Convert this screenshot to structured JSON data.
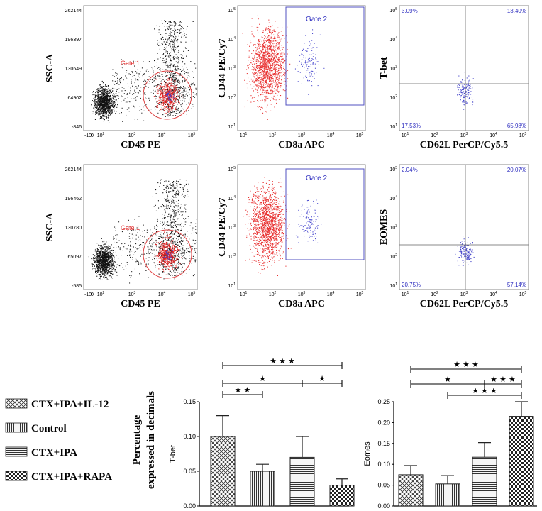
{
  "panels": [
    {
      "ylabel": "SSC-A",
      "xlabel": "CD45 PE",
      "yticks": [
        "262144",
        "196397",
        "130649",
        "64902",
        "-846"
      ],
      "xticks": [
        "-10",
        "0",
        "10",
        "10",
        "10",
        "10"
      ],
      "exps": [
        "",
        "",
        "2",
        "3",
        "4",
        "5"
      ],
      "gate": "Gate 1"
    },
    {
      "ylabel": "CD44 PE/Cy7",
      "xlabel": "CD8a APC",
      "yticks": [
        "10",
        "10",
        "10",
        "10",
        "10"
      ],
      "yexps": [
        "5",
        "4",
        "3",
        "2",
        "1"
      ],
      "xticks": [
        "10",
        "10",
        "10",
        "10",
        "10"
      ],
      "exps": [
        "1",
        "2",
        "3",
        "4",
        "5"
      ],
      "gate": "Gate 2"
    },
    {
      "ylabel": "T-bet",
      "xlabel": "CD62L PerCP/Cy5.5",
      "yticks": [
        "10",
        "10",
        "10",
        "10",
        "10"
      ],
      "yexps": [
        "5",
        "4",
        "3",
        "2",
        "1"
      ],
      "xticks": [
        "10",
        "10",
        "10",
        "10",
        "10"
      ],
      "exps": [
        "1",
        "2",
        "3",
        "4",
        "5"
      ],
      "quads": [
        "3.09%",
        "13.40%",
        "17.53%",
        "65.98%"
      ]
    },
    {
      "ylabel": "SSC-A",
      "xlabel": "CD45 PE",
      "yticks": [
        "262144",
        "196462",
        "130780",
        "65097",
        "-585"
      ],
      "xticks": [
        "-10",
        "0",
        "10",
        "10",
        "10",
        "10"
      ],
      "exps": [
        "",
        "",
        "2",
        "3",
        "4",
        "5"
      ],
      "gate": "Gate 1"
    },
    {
      "ylabel": "CD44 PE/Cy7",
      "xlabel": "CD8a APC",
      "yticks": [
        "10",
        "10",
        "10",
        "10",
        "10"
      ],
      "yexps": [
        "5",
        "4",
        "3",
        "2",
        "1"
      ],
      "xticks": [
        "10",
        "10",
        "10",
        "10",
        "10"
      ],
      "exps": [
        "1",
        "2",
        "3",
        "4",
        "5"
      ],
      "gate": "Gate 2"
    },
    {
      "ylabel": "EOMES",
      "xlabel": "CD62L PerCP/Cy5.5",
      "yticks": [
        "10",
        "10",
        "10",
        "10",
        "10"
      ],
      "yexps": [
        "5",
        "4",
        "3",
        "2",
        "1"
      ],
      "xticks": [
        "10",
        "10",
        "10",
        "10",
        "10"
      ],
      "exps": [
        "1",
        "2",
        "3",
        "4",
        "5"
      ],
      "quads": [
        "2.04%",
        "20.07%",
        "20.75%",
        "57.14%"
      ]
    }
  ],
  "shared_ylabel": [
    "Percentage",
    "expressed in decimals"
  ],
  "legend": [
    "CTX+IPA+IL-12",
    "Control",
    "CTX+IPA",
    "CTX+IPA+RAPA"
  ],
  "star": "★",
  "chart_data": [
    {
      "type": "bar",
      "ylabel": "T-bet",
      "categories": [
        "CTX+IPA+IL-12",
        "Control",
        "CTX+IPA",
        "CTX+IPA+RAPA"
      ],
      "values": [
        0.1,
        0.05,
        0.07,
        0.03
      ],
      "errors": [
        0.03,
        0.01,
        0.03,
        0.009
      ],
      "ylim": [
        0,
        0.15
      ],
      "yticks": [
        "0.00",
        "0.05",
        "0.10",
        "0.15"
      ],
      "significance": [
        {
          "from": 0,
          "to": 3,
          "label": "★ ★ ★"
        },
        {
          "from": 0,
          "to": 2,
          "label": "★"
        },
        {
          "from": 2,
          "to": 3,
          "label": "★"
        },
        {
          "from": 0,
          "to": 1,
          "label": "★ ★"
        }
      ]
    },
    {
      "type": "bar",
      "ylabel": "Eomes",
      "categories": [
        "CTX+IPA+IL-12",
        "Control",
        "CTX+IPA",
        "CTX+IPA+RAPA"
      ],
      "values": [
        0.075,
        0.053,
        0.117,
        0.215
      ],
      "errors": [
        0.022,
        0.02,
        0.035,
        0.035
      ],
      "ylim": [
        0,
        0.25
      ],
      "yticks": [
        "0.00",
        "0.05",
        "0.10",
        "0.15",
        "0.20",
        "0.25"
      ],
      "significance": [
        {
          "from": 0,
          "to": 3,
          "label": "★ ★ ★"
        },
        {
          "from": 0,
          "to": 2,
          "label": "★"
        },
        {
          "from": 2,
          "to": 3,
          "label": "★ ★ ★"
        },
        {
          "from": 1,
          "to": 3,
          "label": "★ ★ ★"
        }
      ]
    }
  ]
}
